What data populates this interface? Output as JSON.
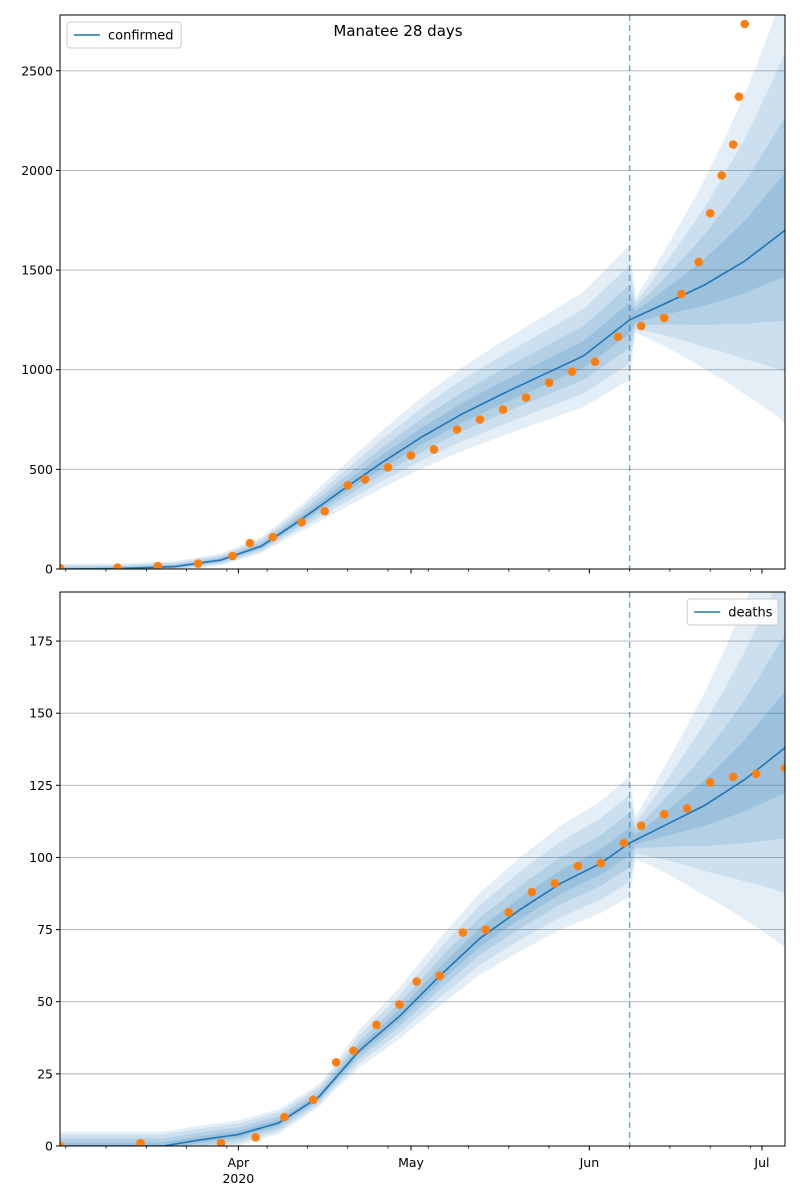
{
  "chart_data": [
    {
      "type": "line",
      "title": "Manatee 28 days",
      "xlabel": "",
      "ylabel": "",
      "x_range": [
        "2020-03-01",
        "2020-07-05"
      ],
      "ylim": [
        0,
        2780
      ],
      "yticks": [
        0,
        500,
        1000,
        1500,
        2000,
        2500
      ],
      "grid": "horizontal",
      "legend": "top-left",
      "forecast_start": "2020-06-08",
      "series": [
        {
          "name": "confirmed",
          "type": "line",
          "color": "#1f77b4",
          "x": [
            "2020-03-01",
            "2020-03-11",
            "2020-03-21",
            "2020-03-29",
            "2020-04-05",
            "2020-04-12",
            "2020-04-19",
            "2020-04-26",
            "2020-05-03",
            "2020-05-10",
            "2020-05-17",
            "2020-05-24",
            "2020-05-31",
            "2020-06-08",
            "2020-06-14",
            "2020-06-21",
            "2020-06-28",
            "2020-07-05"
          ],
          "values": [
            0,
            2,
            12,
            45,
            115,
            250,
            395,
            535,
            665,
            780,
            880,
            975,
            1070,
            1250,
            1330,
            1425,
            1545,
            1700
          ]
        },
        {
          "name": "",
          "type": "scatter",
          "color": "#ff7f0e",
          "x": [
            "2020-03-01",
            "2020-03-11",
            "2020-03-18",
            "2020-03-25",
            "2020-03-31",
            "2020-04-03",
            "2020-04-07",
            "2020-04-12",
            "2020-04-16",
            "2020-04-20",
            "2020-04-23",
            "2020-04-27",
            "2020-05-01",
            "2020-05-05",
            "2020-05-09",
            "2020-05-13",
            "2020-05-17",
            "2020-05-21",
            "2020-05-25",
            "2020-05-29",
            "2020-06-02",
            "2020-06-06",
            "2020-06-10",
            "2020-06-14",
            "2020-06-17",
            "2020-06-20",
            "2020-06-22",
            "2020-06-24",
            "2020-06-26",
            "2020-06-27",
            "2020-06-28"
          ],
          "values": [
            5,
            7,
            15,
            27,
            65,
            130,
            160,
            235,
            290,
            420,
            450,
            510,
            570,
            600,
            700,
            750,
            800,
            860,
            935,
            990,
            1040,
            1165,
            1220,
            1260,
            1380,
            1540,
            1785,
            1975,
            2130,
            2370,
            2735
          ]
        }
      ]
    },
    {
      "type": "line",
      "title": "",
      "xlabel": "",
      "ylabel": "",
      "x_range": [
        "2020-03-01",
        "2020-07-05"
      ],
      "ylim": [
        0,
        192
      ],
      "yticks": [
        0,
        25,
        50,
        75,
        100,
        125,
        150,
        175
      ],
      "xticks": [
        "Apr\n2020",
        "May",
        "Jun",
        "Jul"
      ],
      "grid": "horizontal",
      "legend": "top-right",
      "forecast_start": "2020-06-08",
      "series": [
        {
          "name": "deaths",
          "type": "line",
          "color": "#1f77b4",
          "x": [
            "2020-03-01",
            "2020-03-19",
            "2020-03-25",
            "2020-04-01",
            "2020-04-08",
            "2020-04-15",
            "2020-04-22",
            "2020-04-29",
            "2020-05-06",
            "2020-05-13",
            "2020-05-20",
            "2020-05-27",
            "2020-06-03",
            "2020-06-08",
            "2020-06-14",
            "2020-06-21",
            "2020-06-28",
            "2020-07-05"
          ],
          "values": [
            0,
            0,
            2,
            4,
            8,
            17,
            33,
            45,
            59,
            72,
            82,
            91,
            98,
            105,
            111,
            118,
            127,
            138
          ]
        },
        {
          "name": "",
          "type": "scatter",
          "color": "#ff7f0e",
          "x": [
            "2020-03-01",
            "2020-03-15",
            "2020-03-29",
            "2020-04-04",
            "2020-04-09",
            "2020-04-14",
            "2020-04-18",
            "2020-04-21",
            "2020-04-25",
            "2020-04-29",
            "2020-05-02",
            "2020-05-06",
            "2020-05-10",
            "2020-05-14",
            "2020-05-18",
            "2020-05-22",
            "2020-05-26",
            "2020-05-30",
            "2020-06-03",
            "2020-06-07",
            "2020-06-10",
            "2020-06-14",
            "2020-06-18",
            "2020-06-22",
            "2020-06-26",
            "2020-06-30",
            "2020-07-05"
          ],
          "values": [
            0,
            1,
            1,
            3,
            10,
            16,
            29,
            33,
            42,
            49,
            57,
            59,
            74,
            75,
            81,
            88,
            91,
            97,
            98,
            105,
            111,
            115,
            117,
            126,
            128,
            129,
            131
          ]
        }
      ]
    }
  ]
}
